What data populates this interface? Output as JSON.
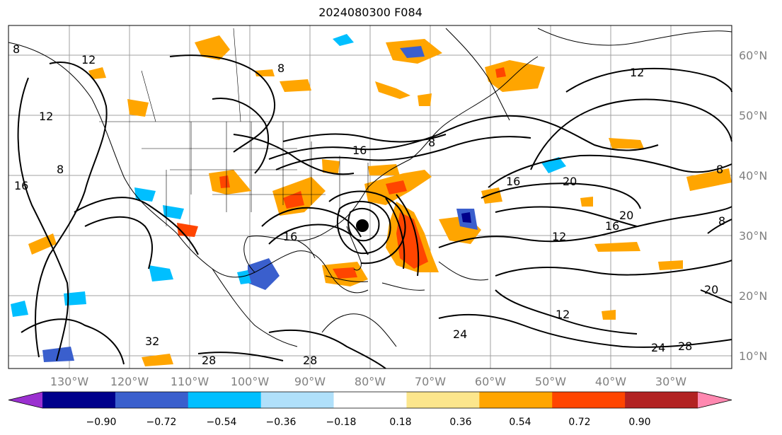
{
  "title": "2024080300 F084",
  "map": {
    "lat_labels": [
      "60°N",
      "50°N",
      "40°N",
      "30°N",
      "20°N",
      "10°N"
    ],
    "lon_labels": [
      "130°W",
      "120°W",
      "110°W",
      "100°W",
      "90°W",
      "80°W",
      "70°W",
      "60°W",
      "50°W",
      "40°W",
      "30°W"
    ],
    "contour_labels": [
      "12",
      "8",
      "16",
      "20",
      "24",
      "28",
      "32"
    ],
    "colors": {
      "land_outline": "#000000",
      "grid": "#a0a0a0",
      "contour": "#000000",
      "storm_marker": "#000000"
    }
  },
  "colorbar": {
    "tick_labels": [
      "−0.90",
      "−0.72",
      "−0.54",
      "−0.36",
      "−0.18",
      "0.18",
      "0.36",
      "0.54",
      "0.72",
      "0.90"
    ],
    "bins": [
      {
        "color": "#9b30d0"
      },
      {
        "color": "#00008b"
      },
      {
        "color": "#3a5fcd"
      },
      {
        "color": "#00bfff"
      },
      {
        "color": "#b0e0fa"
      },
      {
        "color": "#ffffff"
      },
      {
        "color": "#fce68c"
      },
      {
        "color": "#ffa500"
      },
      {
        "color": "#ff4500"
      },
      {
        "color": "#b22222"
      },
      {
        "color": "#ff88b0"
      }
    ]
  }
}
